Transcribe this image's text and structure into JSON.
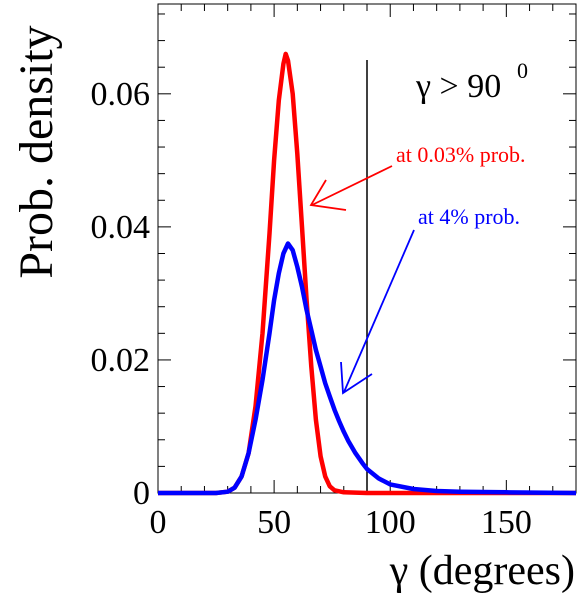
{
  "chart_data": {
    "type": "line",
    "xlabel": "γ (degrees)",
    "ylabel": "Prob. density",
    "xlim": [
      0,
      180
    ],
    "ylim": [
      0,
      0.0735
    ],
    "x_ticks": [
      "0",
      "50",
      "100",
      "150"
    ],
    "y_ticks": [
      "0",
      "0.02",
      "0.04",
      "0.06"
    ],
    "grid": false,
    "annotations": {
      "threshold_label": "γ > 90",
      "threshold_exponent": "0",
      "red_label": "at 0.03% prob.",
      "blue_label": "at 4% prob."
    },
    "vline_x": 90,
    "series": [
      {
        "color": "#ff0000",
        "x": [
          0,
          25,
          30,
          33,
          36,
          39,
          42,
          45,
          48,
          50,
          52,
          54,
          55,
          56,
          58,
          60,
          62,
          64,
          66,
          68,
          70,
          72,
          74,
          76,
          80,
          90,
          100,
          180
        ],
        "y": [
          0,
          0,
          0.0002,
          0.0008,
          0.0025,
          0.006,
          0.013,
          0.024,
          0.039,
          0.05,
          0.059,
          0.0645,
          0.066,
          0.065,
          0.06,
          0.051,
          0.04,
          0.029,
          0.019,
          0.011,
          0.0055,
          0.0025,
          0.001,
          0.0004,
          0.0001,
          0,
          0,
          0
        ]
      },
      {
        "color": "#0000ff",
        "x": [
          0,
          25,
          30,
          33,
          36,
          39,
          42,
          45,
          48,
          50,
          52,
          54,
          56,
          58,
          60,
          62,
          64,
          66,
          68,
          70,
          72,
          74,
          76,
          78,
          80,
          82,
          85,
          88,
          90,
          95,
          100,
          110,
          120,
          130,
          150,
          180
        ],
        "y": [
          0,
          0,
          0.0002,
          0.0008,
          0.0025,
          0.006,
          0.011,
          0.017,
          0.024,
          0.029,
          0.033,
          0.036,
          0.0375,
          0.0365,
          0.034,
          0.031,
          0.0275,
          0.0245,
          0.0215,
          0.019,
          0.0165,
          0.0145,
          0.0125,
          0.0108,
          0.0092,
          0.0078,
          0.006,
          0.0045,
          0.0036,
          0.0022,
          0.0013,
          0.0006,
          0.0003,
          0.0002,
          0.0001,
          0
        ]
      }
    ]
  }
}
